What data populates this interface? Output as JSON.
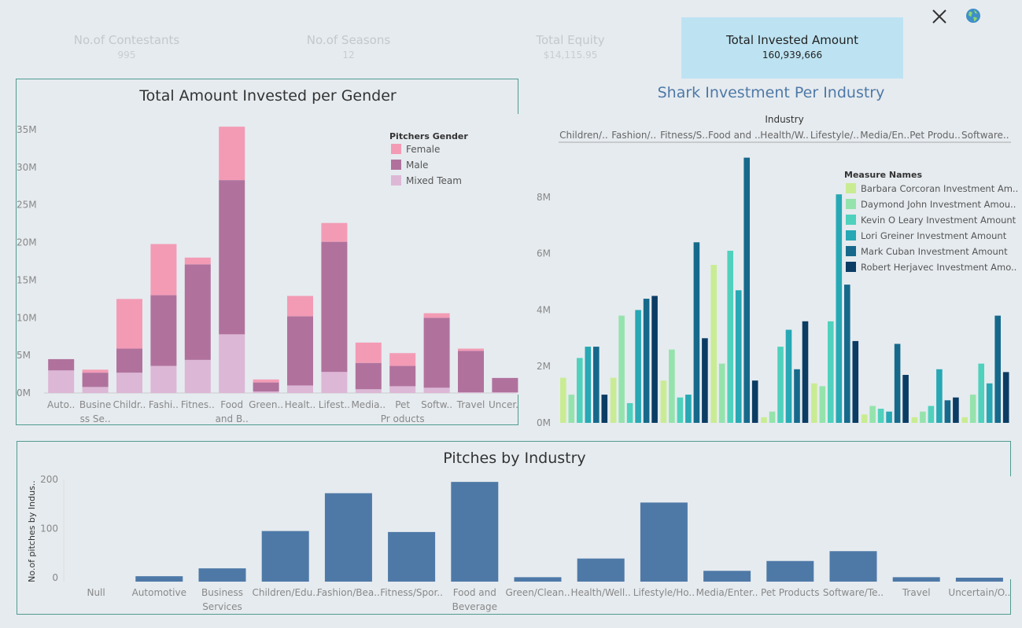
{
  "toolbar": {
    "close_icon": "close-icon",
    "globe_icon": "globe-icon"
  },
  "kpis": [
    {
      "label": "No.of Contestants",
      "value": "995",
      "active": false
    },
    {
      "label": "No.of Seasons",
      "value": "12",
      "active": false
    },
    {
      "label": "Total Equity",
      "value": "$14,115.95",
      "active": false
    },
    {
      "label": "Total Invested Amount",
      "value": "160,939,666",
      "active": true
    }
  ],
  "gender_chart": {
    "title": "Total Amount Invested per Gender",
    "legend_title": "Pitchers Gender",
    "chart_data": {
      "type": "bar",
      "stacked": true,
      "categories": [
        "Auto..",
        "Busine ss Se..",
        "Childr..",
        "Fashi..",
        "Fitnes..",
        "Food and B..",
        "Green..",
        "Healt..",
        "Lifest..",
        "Media..",
        "Pet Pr oducts",
        "Softw..",
        "Travel",
        "Uncer.."
      ],
      "series": [
        {
          "name": "Mixed Team",
          "color": "#ddb7d6",
          "values": [
            3.0,
            0.8,
            2.7,
            3.6,
            4.4,
            7.8,
            0.2,
            1.0,
            2.8,
            0.5,
            0.9,
            0.7,
            0.1,
            0.1
          ]
        },
        {
          "name": "Male",
          "color": "#b0729d",
          "values": [
            1.5,
            1.9,
            3.2,
            9.4,
            12.7,
            20.5,
            1.2,
            9.2,
            17.3,
            3.5,
            2.7,
            9.3,
            5.5,
            1.9
          ]
        },
        {
          "name": "Female",
          "color": "#f39bb5",
          "values": [
            0.0,
            0.4,
            6.6,
            6.8,
            0.9,
            7.1,
            0.4,
            2.7,
            2.5,
            2.7,
            1.7,
            0.6,
            0.3,
            0.0
          ]
        }
      ],
      "y_ticks": [
        "35M",
        "30M",
        "25M",
        "20M",
        "15M",
        "10M",
        "5M",
        "0M"
      ],
      "ylim": [
        0,
        35
      ],
      "legend_position": "top-right"
    }
  },
  "shark_chart": {
    "title": "Shark Investment Per Industry",
    "header": "Industry",
    "legend_title": "Measure Names",
    "chart_data": {
      "type": "bar",
      "categories": [
        "Children/..",
        "Fashion/..",
        "Fitness/S..",
        "Food and ..",
        "Health/W..",
        "Lifestyle/..",
        "Media/En..",
        "Pet Produ..",
        "Software.."
      ],
      "series": [
        {
          "name": "Barbara Corcoran Investment Am..",
          "color": "#c9ec93",
          "values": [
            1.6,
            1.6,
            1.5,
            5.6,
            0.2,
            1.4,
            0.3,
            0.2,
            0.2
          ]
        },
        {
          "name": "Daymond John Investment Amou..",
          "color": "#95e3ac",
          "values": [
            1.0,
            3.8,
            2.6,
            2.1,
            0.4,
            1.3,
            0.6,
            0.4,
            1.0
          ]
        },
        {
          "name": "Kevin O Leary Investment Amount",
          "color": "#4fd1bd",
          "values": [
            2.3,
            0.7,
            0.9,
            6.1,
            2.7,
            3.6,
            0.5,
            0.6,
            2.1
          ]
        },
        {
          "name": "Lori Greiner Investment Amount",
          "color": "#27a8b4",
          "values": [
            2.7,
            4.0,
            1.0,
            4.7,
            3.3,
            8.1,
            0.4,
            1.9,
            1.4
          ]
        },
        {
          "name": "Mark Cuban Investment Amount",
          "color": "#16698b",
          "values": [
            2.7,
            4.4,
            6.4,
            9.4,
            1.9,
            4.9,
            2.8,
            0.8,
            3.8
          ]
        },
        {
          "name": "Robert Herjavec Investment Amo..",
          "color": "#0b3c64",
          "values": [
            1.0,
            4.5,
            3.0,
            1.5,
            3.6,
            2.9,
            1.7,
            0.9,
            1.8
          ]
        }
      ],
      "y_ticks": [
        "8M",
        "6M",
        "4M",
        "2M",
        "0M"
      ],
      "ylim": [
        0,
        9.5
      ],
      "legend_position": "top-right"
    }
  },
  "pitches_chart": {
    "title": "Pitches by Industry",
    "ylabel": "No.of pitches by Indus..",
    "chart_data": {
      "type": "bar",
      "categories": [
        "Null",
        "Automotive",
        "Business Services",
        "Children/Edu..",
        "Fashion/Bea..",
        "Fitness/Spor..",
        "Food and Beverage",
        "Green/Clean..",
        "Health/Well..",
        "Lifestyle/Ho..",
        "Media/Enter..",
        "Pet Products",
        "Software/Te..",
        "Travel",
        "Uncertain/O.."
      ],
      "values": [
        0,
        11,
        27,
        103,
        180,
        101,
        203,
        9,
        47,
        161,
        22,
        42,
        62,
        9,
        8
      ],
      "y_ticks": [
        "200",
        "100",
        "0"
      ],
      "ylim": [
        0,
        200
      ],
      "color": "#4e79a7"
    }
  }
}
